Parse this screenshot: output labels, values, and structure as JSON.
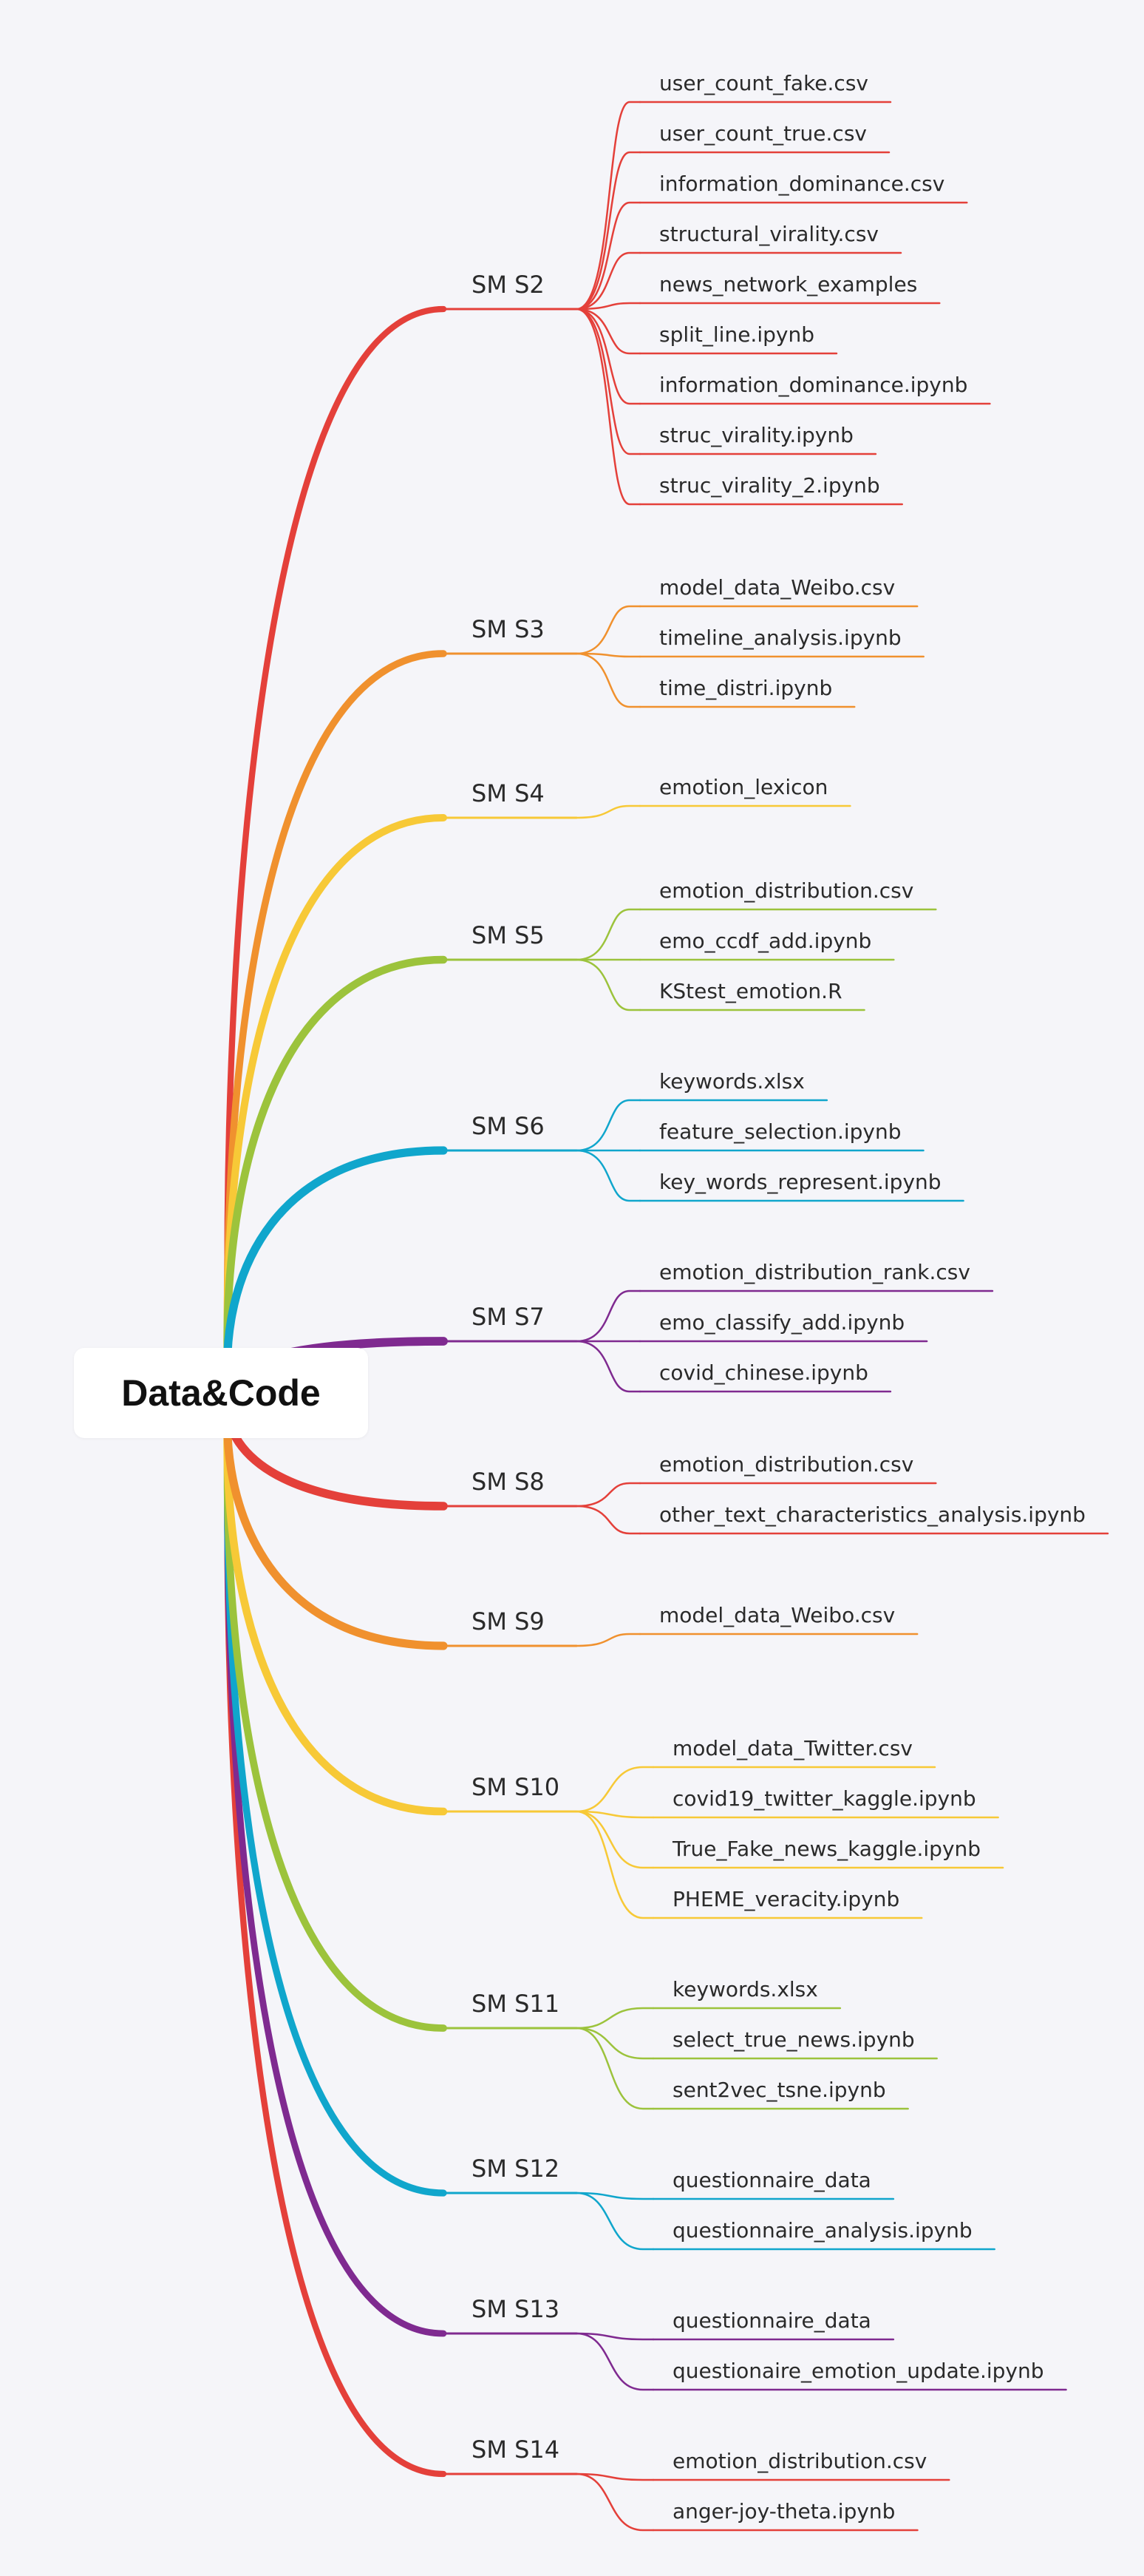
{
  "root": {
    "label": "Data&Code"
  },
  "sections": [
    {
      "label": "SM S2",
      "color": "#e4403a",
      "files": [
        "user_count_fake.csv",
        "user_count_true.csv",
        "information_dominance.csv",
        "structural_virality.csv",
        "news_network_examples",
        "split_line.ipynb",
        "information_dominance.ipynb",
        "struc_virality.ipynb",
        "struc_virality_2.ipynb"
      ]
    },
    {
      "label": "SM S3",
      "color": "#f0912e",
      "files": [
        "model_data_Weibo.csv",
        "timeline_analysis.ipynb",
        "time_distri.ipynb"
      ]
    },
    {
      "label": "SM S4",
      "color": "#f7c937",
      "files": [
        "emotion_lexicon"
      ]
    },
    {
      "label": "SM S5",
      "color": "#9cc33c",
      "files": [
        "emotion_distribution.csv",
        "emo_ccdf_add.ipynb",
        "KStest_emotion.R"
      ]
    },
    {
      "label": "SM S6",
      "color": "#10a6cc",
      "files": [
        "keywords.xlsx",
        "feature_selection.ipynb",
        "key_words_represent.ipynb"
      ]
    },
    {
      "label": "SM S7",
      "color": "#7f2a90",
      "files": [
        "emotion_distribution_rank.csv",
        "emo_classify_add.ipynb",
        "covid_chinese.ipynb"
      ]
    },
    {
      "label": "SM S8",
      "color": "#e4403a",
      "files": [
        "emotion_distribution.csv",
        "other_text_characteristics_analysis.ipynb"
      ]
    },
    {
      "label": "SM S9",
      "color": "#f0912e",
      "files": [
        "model_data_Weibo.csv"
      ]
    },
    {
      "label": "SM S10",
      "color": "#f7c937",
      "files": [
        "model_data_Twitter.csv",
        "covid19_twitter_kaggle.ipynb",
        "True_Fake_news_kaggle.ipynb",
        "PHEME_veracity.ipynb"
      ]
    },
    {
      "label": "SM S11",
      "color": "#9cc33c",
      "files": [
        "keywords.xlsx",
        "select_true_news.ipynb",
        "sent2vec_tsne.ipynb"
      ]
    },
    {
      "label": "SM S12",
      "color": "#10a6cc",
      "files": [
        "questionnaire_data",
        "questionnaire_analysis.ipynb"
      ]
    },
    {
      "label": "SM S13",
      "color": "#7f2a90",
      "files": [
        "questionnaire_data",
        "questionaire_emotion_update.ipynb"
      ]
    },
    {
      "label": "SM S14",
      "color": "#e4403a",
      "files": [
        "emotion_distribution.csv",
        "anger-joy-theta.ipynb"
      ]
    }
  ]
}
